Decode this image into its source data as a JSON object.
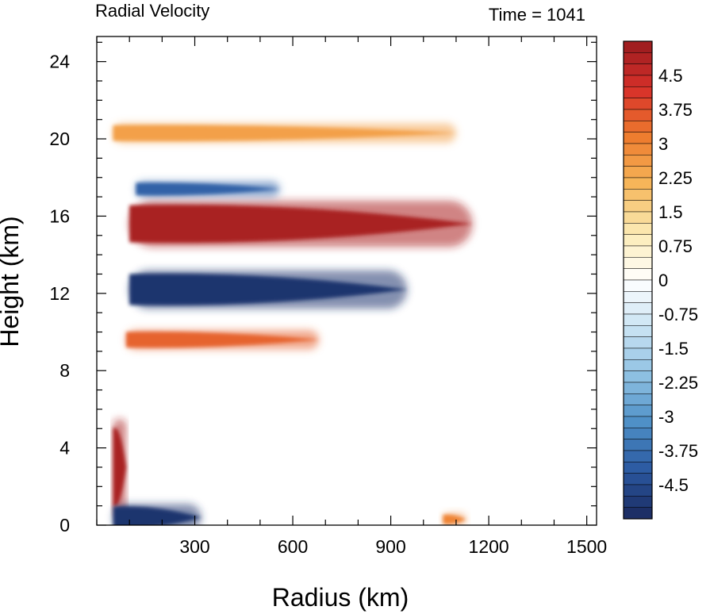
{
  "chart_data": {
    "type": "heatmap",
    "title": "Radial Velocity",
    "subtitle": "Time = 1041",
    "xlabel": "Radius (km)",
    "ylabel": "Height (km)",
    "xlim": [
      0,
      1530
    ],
    "ylim": [
      0,
      25.3
    ],
    "x_ticks": [
      300,
      600,
      900,
      1200,
      1500
    ],
    "x_tick_labels": [
      "300",
      "600",
      "900",
      "1200",
      "1500"
    ],
    "y_ticks": [
      0,
      4,
      8,
      12,
      16,
      20,
      24
    ],
    "y_tick_labels": [
      "0",
      "4",
      "8",
      "12",
      "16",
      "20",
      "24"
    ],
    "grid": false,
    "colorbar": {
      "levels": [
        -5.25,
        5.25
      ],
      "step": 0.25,
      "tick_values": [
        4.5,
        3.75,
        3,
        2.25,
        1.5,
        0.75,
        0,
        -0.75,
        -1.5,
        -2.25,
        -3,
        -3.75,
        -4.5
      ],
      "tick_labels": [
        "4.5",
        "3.75",
        "3",
        "2.25",
        "1.5",
        "0.75",
        "0",
        "-0.75",
        "-1.5",
        "-2.25",
        "-3",
        "-3.75",
        "-4.5"
      ],
      "colors": [
        "#1b2a5e",
        "#2a58a0",
        "#4d8fc6",
        "#8fc1e3",
        "#c9e3f3",
        "#ffffff",
        "#fbeab3",
        "#f6b65a",
        "#ee7c2e",
        "#d7302a",
        "#9a1c1f"
      ]
    },
    "features": [
      {
        "name": "upper outflow",
        "value": 5.0,
        "r_start": 100,
        "r_end": 1150,
        "z_center": 15.6,
        "z_half_width": 1.2
      },
      {
        "name": "inflow below outflow",
        "value": -5.0,
        "r_start": 100,
        "r_end": 950,
        "z_center": 12.2,
        "z_half_width": 1.0
      },
      {
        "name": "mid-level outflow",
        "value": 3.5,
        "r_start": 90,
        "r_end": 680,
        "z_center": 9.6,
        "z_half_width": 0.5
      },
      {
        "name": "upper inflow jet",
        "value": -4.0,
        "r_start": 120,
        "r_end": 560,
        "z_center": 17.4,
        "z_half_width": 0.4
      },
      {
        "name": "top outflow layer",
        "value": 2.5,
        "r_start": 50,
        "r_end": 1100,
        "z_center": 20.3,
        "z_half_width": 0.5
      },
      {
        "name": "low-level outflow",
        "value": 5.0,
        "r_start": 50,
        "r_end": 90,
        "z_center": 3.0,
        "z_half_width": 2.5
      },
      {
        "name": "boundary-layer inflow",
        "value": -5.0,
        "r_start": 50,
        "r_end": 320,
        "z_center": 0.4,
        "z_half_width": 0.7
      },
      {
        "name": "surface outflow",
        "value": 3.0,
        "r_start": 1060,
        "r_end": 1130,
        "z_center": 0.3,
        "z_half_width": 0.3
      }
    ]
  }
}
